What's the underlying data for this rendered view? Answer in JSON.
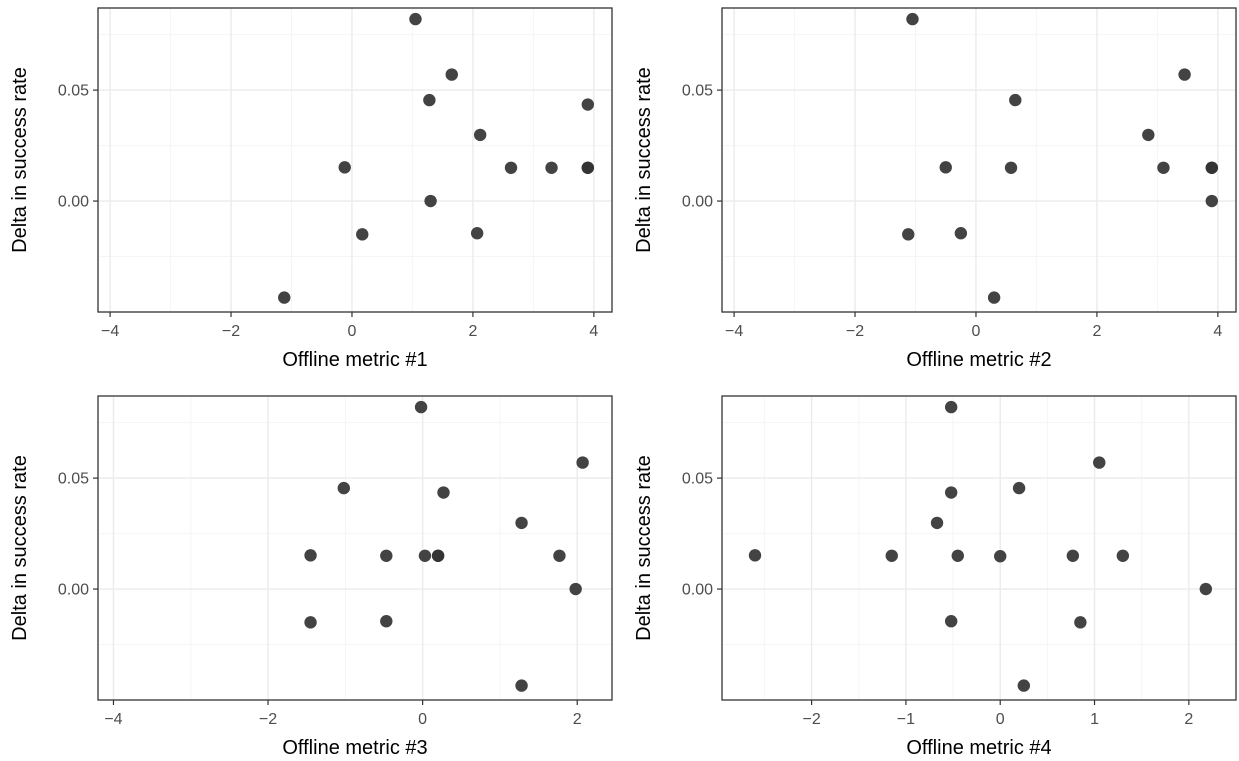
{
  "chart_data": [
    {
      "type": "scatter",
      "xlabel": "Offline metric #1",
      "ylabel": "Delta in success rate",
      "xlim": [
        -4.2,
        4.3
      ],
      "ylim": [
        -0.05,
        0.087
      ],
      "x_ticks": [
        {
          "value": -4,
          "label": "−4"
        },
        {
          "value": -2,
          "label": "−2"
        },
        {
          "value": 0,
          "label": "0"
        },
        {
          "value": 2,
          "label": "2"
        },
        {
          "value": 4,
          "label": "4"
        }
      ],
      "y_ticks": [
        {
          "value": 0.0,
          "label": "0.00"
        },
        {
          "value": 0.05,
          "label": "0.05"
        }
      ],
      "grid": true,
      "points": [
        {
          "x": 1.05,
          "y": 0.082
        },
        {
          "x": 1.65,
          "y": 0.057
        },
        {
          "x": 1.28,
          "y": 0.0455
        },
        {
          "x": 3.9,
          "y": 0.0435
        },
        {
          "x": 2.12,
          "y": 0.0298
        },
        {
          "x": -0.12,
          "y": 0.0152
        },
        {
          "x": 2.63,
          "y": 0.015
        },
        {
          "x": 3.3,
          "y": 0.015
        },
        {
          "x": 3.9,
          "y": 0.015
        },
        {
          "x": 3.9,
          "y": 0.015
        },
        {
          "x": 1.3,
          "y": 0.0
        },
        {
          "x": 0.17,
          "y": -0.015
        },
        {
          "x": 2.07,
          "y": -0.0145
        },
        {
          "x": -1.12,
          "y": -0.0435
        }
      ]
    },
    {
      "type": "scatter",
      "xlabel": "Offline metric #2",
      "ylabel": "Delta in success rate",
      "xlim": [
        -4.2,
        4.3
      ],
      "ylim": [
        -0.05,
        0.087
      ],
      "x_ticks": [
        {
          "value": -4,
          "label": "−4"
        },
        {
          "value": -2,
          "label": "−2"
        },
        {
          "value": 0,
          "label": "0"
        },
        {
          "value": 2,
          "label": "2"
        },
        {
          "value": 4,
          "label": "4"
        }
      ],
      "y_ticks": [
        {
          "value": 0.0,
          "label": "0.00"
        },
        {
          "value": 0.05,
          "label": "0.05"
        }
      ],
      "grid": true,
      "points": [
        {
          "x": -1.05,
          "y": 0.082
        },
        {
          "x": 3.45,
          "y": 0.057
        },
        {
          "x": 0.65,
          "y": 0.0455
        },
        {
          "x": 2.85,
          "y": 0.0298
        },
        {
          "x": -0.5,
          "y": 0.0152
        },
        {
          "x": 0.58,
          "y": 0.015
        },
        {
          "x": 3.1,
          "y": 0.015
        },
        {
          "x": 3.9,
          "y": 0.015
        },
        {
          "x": 3.9,
          "y": 0.015
        },
        {
          "x": 3.9,
          "y": 0.0
        },
        {
          "x": -1.12,
          "y": -0.015
        },
        {
          "x": -0.25,
          "y": -0.0145
        },
        {
          "x": 0.3,
          "y": -0.0435
        }
      ]
    },
    {
      "type": "scatter",
      "xlabel": "Offline metric #3",
      "ylabel": "Delta in success rate",
      "xlim": [
        -4.2,
        2.45
      ],
      "ylim": [
        -0.05,
        0.087
      ],
      "x_ticks": [
        {
          "value": -4,
          "label": "−4"
        },
        {
          "value": -2,
          "label": "−2"
        },
        {
          "value": 0,
          "label": "0"
        },
        {
          "value": 2,
          "label": "2"
        }
      ],
      "y_ticks": [
        {
          "value": 0.0,
          "label": "0.00"
        },
        {
          "value": 0.05,
          "label": "0.05"
        }
      ],
      "grid": true,
      "points": [
        {
          "x": -0.02,
          "y": 0.082
        },
        {
          "x": 2.07,
          "y": 0.057
        },
        {
          "x": -1.02,
          "y": 0.0455
        },
        {
          "x": 0.27,
          "y": 0.0435
        },
        {
          "x": 1.28,
          "y": 0.0298
        },
        {
          "x": -1.45,
          "y": 0.0152
        },
        {
          "x": -0.47,
          "y": 0.015
        },
        {
          "x": 0.03,
          "y": 0.015
        },
        {
          "x": 0.2,
          "y": 0.015
        },
        {
          "x": 0.2,
          "y": 0.015
        },
        {
          "x": 1.77,
          "y": 0.015
        },
        {
          "x": 1.98,
          "y": 0.0
        },
        {
          "x": -1.45,
          "y": -0.015
        },
        {
          "x": -0.47,
          "y": -0.0145
        },
        {
          "x": 1.28,
          "y": -0.0435
        }
      ]
    },
    {
      "type": "scatter",
      "xlabel": "Offline metric #4",
      "ylabel": "Delta in success rate",
      "xlim": [
        -2.95,
        2.5
      ],
      "ylim": [
        -0.05,
        0.087
      ],
      "x_ticks": [
        {
          "value": -2,
          "label": "−2"
        },
        {
          "value": -1,
          "label": "−1"
        },
        {
          "value": 0,
          "label": "0"
        },
        {
          "value": 1,
          "label": "1"
        },
        {
          "value": 2,
          "label": "2"
        }
      ],
      "y_ticks": [
        {
          "value": 0.0,
          "label": "0.00"
        },
        {
          "value": 0.05,
          "label": "0.05"
        }
      ],
      "grid": true,
      "points": [
        {
          "x": -0.52,
          "y": 0.082
        },
        {
          "x": 1.05,
          "y": 0.057
        },
        {
          "x": 0.2,
          "y": 0.0455
        },
        {
          "x": -0.52,
          "y": 0.0435
        },
        {
          "x": -0.67,
          "y": 0.0298
        },
        {
          "x": -2.6,
          "y": 0.0152
        },
        {
          "x": -1.15,
          "y": 0.015
        },
        {
          "x": -0.45,
          "y": 0.015
        },
        {
          "x": 0.0,
          "y": 0.0148
        },
        {
          "x": 0.77,
          "y": 0.015
        },
        {
          "x": 1.3,
          "y": 0.015
        },
        {
          "x": 2.18,
          "y": 0.0
        },
        {
          "x": -0.52,
          "y": -0.0145
        },
        {
          "x": 0.85,
          "y": -0.015
        },
        {
          "x": 0.25,
          "y": -0.0435
        }
      ]
    }
  ],
  "style": {
    "point_color": "#333333",
    "panel_border_color": "#333333",
    "grid_major_color": "#ebebeb",
    "grid_minor_color": "#f5f5f5",
    "tick_label_color": "#4d4d4d"
  }
}
